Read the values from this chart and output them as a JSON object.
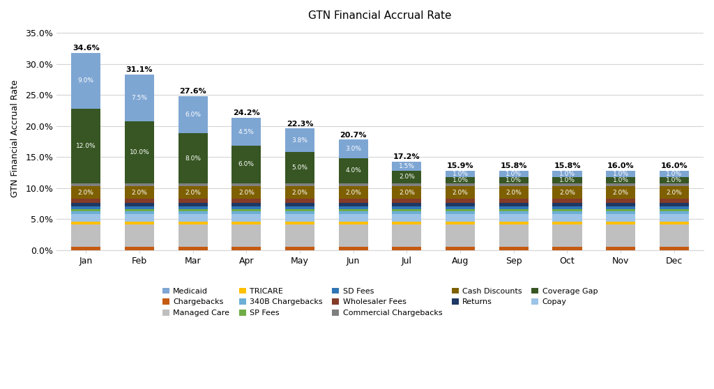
{
  "title": "GTN Financial Accrual Rate",
  "ylabel": "GTN Financial Accrual Rate",
  "months": [
    "Jan",
    "Feb",
    "Mar",
    "Apr",
    "May",
    "Jun",
    "Jul",
    "Aug",
    "Sep",
    "Oct",
    "Nov",
    "Dec"
  ],
  "totals": [
    34.6,
    31.1,
    27.6,
    24.2,
    22.3,
    20.7,
    17.2,
    15.9,
    15.8,
    15.8,
    16.0,
    16.0
  ],
  "stack_order": [
    "Chargebacks",
    "Managed Care",
    "TRICARE",
    "Copay",
    "340B Chargebacks",
    "SP Fees",
    "SD Fees",
    "Returns",
    "Wholesaler Fees",
    "Cash Discounts",
    "Commercial Chargebacks",
    "Coverage Gap",
    "Medicaid"
  ],
  "series": {
    "Chargebacks": [
      0.6,
      0.6,
      0.6,
      0.6,
      0.6,
      0.6,
      0.6,
      0.6,
      0.6,
      0.6,
      0.6,
      0.6
    ],
    "Managed Care": [
      3.5,
      3.5,
      3.5,
      3.5,
      3.5,
      3.5,
      3.5,
      3.5,
      3.5,
      3.5,
      3.5,
      3.5
    ],
    "TRICARE": [
      0.5,
      0.5,
      0.5,
      0.5,
      0.5,
      0.5,
      0.5,
      0.5,
      0.5,
      0.5,
      0.5,
      0.5
    ],
    "Copay": [
      1.2,
      1.2,
      1.2,
      1.2,
      1.2,
      1.2,
      1.2,
      1.2,
      1.2,
      1.2,
      1.2,
      1.2
    ],
    "340B Chargebacks": [
      0.5,
      0.5,
      0.5,
      0.5,
      0.5,
      0.5,
      0.5,
      0.5,
      0.5,
      0.5,
      0.5,
      0.5
    ],
    "SP Fees": [
      0.3,
      0.3,
      0.3,
      0.3,
      0.3,
      0.3,
      0.3,
      0.3,
      0.3,
      0.3,
      0.3,
      0.3
    ],
    "SD Fees": [
      0.5,
      0.5,
      0.5,
      0.5,
      0.5,
      0.5,
      0.5,
      0.5,
      0.5,
      0.5,
      0.5,
      0.5
    ],
    "Returns": [
      0.5,
      0.5,
      0.5,
      0.5,
      0.5,
      0.5,
      0.5,
      0.5,
      0.5,
      0.5,
      0.5,
      0.5
    ],
    "Wholesaler Fees": [
      0.7,
      0.7,
      0.7,
      0.7,
      0.7,
      0.7,
      0.7,
      0.7,
      0.7,
      0.7,
      0.7,
      0.7
    ],
    "Cash Discounts": [
      2.0,
      2.0,
      2.0,
      2.0,
      2.0,
      2.0,
      2.0,
      2.0,
      2.0,
      2.0,
      2.0,
      2.0
    ],
    "Commercial Chargebacks": [
      0.5,
      0.5,
      0.5,
      0.5,
      0.5,
      0.5,
      0.5,
      0.5,
      0.5,
      0.5,
      0.5,
      0.5
    ],
    "Coverage Gap": [
      12.0,
      10.0,
      8.0,
      6.0,
      5.0,
      4.0,
      2.0,
      1.0,
      1.0,
      1.0,
      1.0,
      1.0
    ],
    "Medicaid": [
      9.0,
      7.5,
      6.0,
      4.5,
      3.8,
      3.0,
      1.5,
      1.0,
      1.0,
      1.0,
      1.0,
      1.0
    ]
  },
  "series_colors": {
    "Chargebacks": "#c55a11",
    "Managed Care": "#bfbfbf",
    "TRICARE": "#ffc000",
    "Copay": "#9dc3e6",
    "340B Chargebacks": "#6cafd6",
    "SP Fees": "#70ad47",
    "SD Fees": "#2e75b6",
    "Returns": "#1f3864",
    "Wholesaler Fees": "#843c28",
    "Cash Discounts": "#7f6000",
    "Commercial Chargebacks": "#7f7f7f",
    "Coverage Gap": "#375623",
    "Medicaid": "#7ea6d3"
  },
  "cg_labels": [
    "12.0%",
    "10.0%",
    "8.0%",
    "6.0%",
    "5.0%",
    "4.0%",
    "2.0%",
    "1.0%",
    "1.0%",
    "1.0%",
    "1.0%",
    "1.0%"
  ],
  "med_labels": [
    "9.0%",
    "7.5%",
    "6.0%",
    "4.5%",
    "3.8%",
    "3.0%",
    "1.5%",
    "1.0%",
    "1.0%",
    "1.0%",
    "1.0%",
    "1.0%"
  ],
  "cd_label": "2.0%",
  "ylim": [
    0,
    36
  ],
  "yticks": [
    0,
    5,
    10,
    15,
    20,
    25,
    30,
    35
  ],
  "ytick_labels": [
    "0.0%",
    "5.0%",
    "10.0%",
    "15.0%",
    "20.0%",
    "25.0%",
    "30.0%",
    "35.0%"
  ],
  "bg_color": "#ffffff",
  "grid_color": "#d4d4d4",
  "legend_order": [
    [
      "Medicaid",
      "#7ea6d3"
    ],
    [
      "Chargebacks",
      "#c55a11"
    ],
    [
      "Managed Care",
      "#bfbfbf"
    ],
    [
      "TRICARE",
      "#ffc000"
    ],
    [
      "340B Chargebacks",
      "#6cafd6"
    ],
    [
      "SP Fees",
      "#70ad47"
    ],
    [
      "SD Fees",
      "#2e75b6"
    ],
    [
      "Wholesaler Fees",
      "#843c28"
    ],
    [
      "Commercial Chargebacks",
      "#7f7f7f"
    ],
    [
      "Cash Discounts",
      "#7f6000"
    ],
    [
      "Returns",
      "#1f3864"
    ],
    [
      "Coverage Gap",
      "#375623"
    ],
    [
      "Copay",
      "#9dc3e6"
    ]
  ]
}
